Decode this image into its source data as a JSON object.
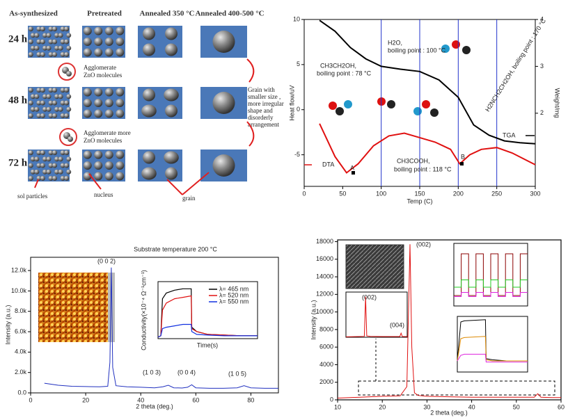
{
  "diagram": {
    "columns": [
      "As-synthesized",
      "Pretreated",
      "Annealed 350 °C",
      "Annealed 400-500 °C"
    ],
    "rows": [
      "24 h",
      "48 h",
      "72 h"
    ],
    "note_1": [
      "Agglomerate",
      "ZnO molecules"
    ],
    "note_2": [
      "Agglomerate more",
      "ZnO molecules"
    ],
    "note_3": [
      "Grain with",
      "smaller size ,",
      "more irregular",
      "shape and",
      "disorderly",
      "arrangement"
    ],
    "labels": [
      "sol particles",
      "nucleus",
      "grain"
    ]
  },
  "chart_data": [
    {
      "type": "line",
      "xlabel": "Temp (C)",
      "ylabel": "Heat flow/uV",
      "y2label": "Weight/mg",
      "xlim": [
        0,
        300
      ],
      "xticks": [
        0,
        50,
        100,
        150,
        200,
        250,
        300
      ],
      "ylim": [
        -8.5,
        10
      ],
      "yticks": [
        -5,
        0,
        5,
        10
      ],
      "y2lim": [
        0.44,
        4
      ],
      "y2ticks": [
        2,
        3,
        4
      ],
      "reference_lines_x": [
        100,
        150,
        200,
        250
      ],
      "reference_color": "#2233cc",
      "annotations": [
        "H2O,",
        "boiling point : 100 °C",
        "CH3CH2OH,",
        "boiling point : 78 °C",
        "CH3COOH,",
        "boiling point : 118 °C",
        "H2NCH2CH2OH, boiling point : 170 °C",
        "TGA",
        "DTA",
        "A",
        "B"
      ],
      "series": [
        {
          "color": "#e01010",
          "axis": "y",
          "x": [
            20,
            40,
            55,
            70,
            90,
            110,
            130,
            150,
            170,
            190,
            202,
            215,
            230,
            250,
            270,
            300
          ],
          "values": [
            -1.55,
            -5.2,
            -7.0,
            -6.0,
            -4.0,
            -2.9,
            -2.6,
            -3.1,
            -3.6,
            -4.4,
            -6.0,
            -5.0,
            -4.4,
            -4.2,
            -4.8,
            -6.1
          ]
        },
        {
          "color": "#000000",
          "axis": "y2",
          "x": [
            20,
            40,
            60,
            80,
            100,
            125,
            150,
            175,
            200,
            220,
            240,
            260,
            280,
            300
          ],
          "values": [
            3.98,
            3.75,
            3.4,
            3.16,
            3.0,
            2.94,
            2.89,
            2.71,
            2.34,
            1.75,
            1.53,
            1.41,
            1.37,
            1.35
          ]
        }
      ]
    },
    {
      "type": "line",
      "title": "Substrate temperature 200 °C",
      "xlabel": "2 theta (deg.)",
      "ylabel": "Intensity (a.u.)",
      "xlim": [
        0,
        90
      ],
      "xticks": [
        0,
        20,
        40,
        60,
        80
      ],
      "ylim": [
        0,
        13300
      ],
      "yticks": [
        {
          "value": 0,
          "label": "0.0"
        },
        {
          "value": 2000,
          "label": "2.0k"
        },
        {
          "value": 4000,
          "label": "4.0k"
        },
        {
          "value": 6000,
          "label": "6.0k"
        },
        {
          "value": 8000,
          "label": "8.0k"
        },
        {
          "value": 10000,
          "label": "10.0k"
        },
        {
          "value": 12000,
          "label": "12.0k"
        }
      ],
      "annotations": [
        "(0 0 2)",
        "(1 0 3)",
        "(0 0 4)",
        "(1 0 5)"
      ],
      "series": [
        {
          "color": "#1f2fbf",
          "x": [
            5,
            10,
            15,
            20,
            25,
            28,
            28.8,
            29.3,
            29.8,
            31,
            35,
            40,
            45,
            48,
            50,
            52,
            55,
            57,
            58.5,
            60,
            65,
            70,
            75,
            77.5,
            80,
            85,
            90
          ],
          "values": [
            950,
            750,
            650,
            620,
            600,
            650,
            3000,
            12300,
            2500,
            700,
            600,
            550,
            500,
            600,
            750,
            500,
            480,
            550,
            800,
            500,
            450,
            450,
            500,
            700,
            500,
            450,
            450
          ]
        }
      ]
    },
    {
      "type": "line",
      "xlabel": "Time(s)",
      "ylabel": "Conductivity(×10⁻⁴ Ω⁻¹cm⁻¹)",
      "xlim": [
        0,
        180
      ],
      "ylim": [
        0,
        4
      ],
      "legend": "upper right",
      "series": [
        {
          "name": "λ= 465 nm",
          "color": "#000000",
          "x": [
            0,
            5,
            8,
            15,
            30,
            45,
            60,
            61,
            70,
            90,
            120,
            150,
            180
          ],
          "values": [
            0.1,
            0.2,
            2.8,
            3.2,
            3.4,
            3.5,
            3.5,
            0.8,
            0.5,
            0.3,
            0.25,
            0.2,
            0.2
          ]
        },
        {
          "name": "λ= 520 nm",
          "color": "#e01010",
          "x": [
            0,
            5,
            8,
            15,
            30,
            45,
            60,
            61,
            70,
            90,
            120,
            150,
            180
          ],
          "values": [
            0.1,
            0.2,
            2.0,
            2.5,
            2.8,
            2.9,
            3.0,
            0.7,
            0.5,
            0.3,
            0.25,
            0.2,
            0.2
          ]
        },
        {
          "name": "λ= 550 nm",
          "color": "#1030e0",
          "x": [
            0,
            5,
            8,
            15,
            30,
            45,
            60,
            61,
            70,
            90,
            120,
            150,
            180
          ],
          "values": [
            0.1,
            0.2,
            0.7,
            0.8,
            0.9,
            1.0,
            1.0,
            0.5,
            0.3,
            0.25,
            0.2,
            0.2,
            0.2
          ]
        }
      ]
    },
    {
      "type": "line",
      "xlabel": "2 theta (deg.)",
      "ylabel": "Intensity (a.u.)",
      "xlim": [
        10,
        60
      ],
      "xticks": [
        10,
        20,
        30,
        40,
        50,
        60
      ],
      "ylim": [
        0,
        18200
      ],
      "yticks": [
        0,
        2000,
        4000,
        6000,
        8000,
        10000,
        12000,
        14000,
        16000,
        18000
      ],
      "annotations": [
        "(002)"
      ],
      "series": [
        {
          "color": "#e01010",
          "x": [
            10,
            15,
            20,
            24,
            25.5,
            26.2,
            26.6,
            27.2,
            28,
            30,
            35,
            40,
            45,
            50,
            54,
            54.8,
            55.5,
            58,
            60
          ],
          "values": [
            200,
            300,
            400,
            450,
            1500,
            17700,
            6000,
            800,
            500,
            400,
            350,
            300,
            300,
            300,
            300,
            700,
            300,
            250,
            250
          ]
        }
      ]
    },
    {
      "type": "line",
      "xlim": [
        10,
        60
      ],
      "ylim": [
        0,
        10000
      ],
      "annotations": [
        "(002)",
        "(004)"
      ],
      "series": [
        {
          "color": "#e01010",
          "x": [
            10,
            20,
            25,
            26,
            27,
            30,
            40,
            50,
            54,
            55,
            56,
            60
          ],
          "values": [
            100,
            150,
            200,
            9000,
            300,
            200,
            150,
            150,
            150,
            900,
            150,
            150
          ]
        }
      ]
    },
    {
      "type": "line",
      "xlim": [
        0,
        100
      ],
      "ylim": [
        0,
        6
      ],
      "series": [
        {
          "color": "#8b0000",
          "x": [
            0,
            10,
            10,
            20,
            20,
            30,
            30,
            40,
            40,
            50,
            50,
            60,
            60,
            70,
            70,
            80,
            80,
            90,
            90,
            100
          ],
          "values": [
            1,
            1,
            5,
            5,
            1,
            1,
            5,
            5,
            1,
            1,
            5,
            5,
            1,
            1,
            5,
            5,
            1,
            1,
            5,
            5
          ]
        },
        {
          "color": "#22cc22",
          "x": [
            0,
            10,
            10,
            20,
            20,
            30,
            30,
            40,
            40,
            50,
            50,
            60,
            60,
            70,
            70,
            80,
            80,
            90,
            90,
            100
          ],
          "values": [
            1.8,
            1.8,
            2.5,
            2.5,
            1.8,
            1.8,
            2.5,
            2.5,
            1.8,
            1.8,
            2.5,
            2.5,
            1.8,
            1.8,
            2.5,
            2.5,
            1.8,
            1.8,
            2.5,
            2.5
          ]
        },
        {
          "color": "#dd22dd",
          "x": [
            0,
            10,
            10,
            20,
            20,
            30,
            30,
            40,
            40,
            50,
            50,
            60,
            60,
            70,
            70,
            80,
            80,
            90,
            90,
            100
          ],
          "values": [
            0.9,
            0.9,
            1.3,
            1.3,
            0.9,
            0.9,
            1.3,
            1.3,
            0.9,
            0.9,
            1.3,
            1.3,
            0.9,
            0.9,
            1.3,
            1.3,
            0.9,
            0.9,
            1.3,
            1.3
          ]
        }
      ]
    },
    {
      "type": "line",
      "xlim": [
        0,
        100
      ],
      "ylim": [
        0,
        5
      ],
      "series": [
        {
          "color": "#000000",
          "x": [
            0,
            5,
            10,
            40,
            41,
            50,
            70,
            100
          ],
          "values": [
            1,
            4.5,
            4.6,
            4.7,
            1.2,
            1.1,
            1,
            1
          ]
        },
        {
          "color": "#dd8800",
          "x": [
            0,
            5,
            10,
            40,
            41,
            50,
            70,
            100
          ],
          "values": [
            1,
            3,
            3.1,
            3.2,
            1.1,
            1,
            1,
            1
          ]
        },
        {
          "color": "#dd22dd",
          "x": [
            0,
            5,
            10,
            40,
            41,
            50,
            70,
            100
          ],
          "values": [
            1,
            1.5,
            1.6,
            1.6,
            0.9,
            0.9,
            0.9,
            0.9
          ]
        }
      ]
    }
  ]
}
